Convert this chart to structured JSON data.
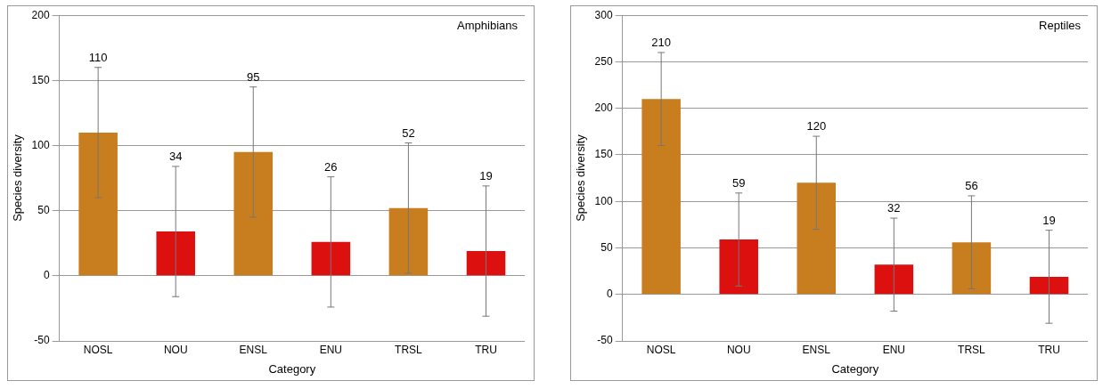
{
  "chart_data": [
    {
      "type": "bar",
      "title": "Amphibians",
      "xlabel": "Category",
      "ylabel": "Species diversity",
      "categories": [
        "NOSL",
        "NOU",
        "ENSL",
        "ENU",
        "TRSL",
        "TRU"
      ],
      "values": [
        110,
        34,
        95,
        26,
        52,
        19
      ],
      "colors": [
        "#c87d1e",
        "#dd1010",
        "#c87d1e",
        "#dd1010",
        "#c87d1e",
        "#dd1010"
      ],
      "errors": [
        50,
        50,
        50,
        50,
        50,
        50
      ],
      "ylim": [
        -50,
        200
      ],
      "yticks": [
        -50,
        0,
        50,
        100,
        150,
        200
      ],
      "grid": "y",
      "legend": false,
      "annotations": [
        {
          "text": "110",
          "x": "NOSL",
          "y": 160
        },
        {
          "text": "34",
          "x": "NOU",
          "y": 84
        },
        {
          "text": "95",
          "x": "ENSL",
          "y": 145
        },
        {
          "text": "26",
          "x": "ENU",
          "y": 76
        },
        {
          "text": "52",
          "x": "TRSL",
          "y": 102
        },
        {
          "text": "19",
          "x": "TRU",
          "y": 69
        }
      ]
    },
    {
      "type": "bar",
      "title": "Reptiles",
      "xlabel": "Category",
      "ylabel": "Species diversity",
      "categories": [
        "NOSL",
        "NOU",
        "ENSL",
        "ENU",
        "TRSL",
        "TRU"
      ],
      "values": [
        210,
        59,
        120,
        32,
        56,
        19
      ],
      "colors": [
        "#c87d1e",
        "#dd1010",
        "#c87d1e",
        "#dd1010",
        "#c87d1e",
        "#dd1010"
      ],
      "errors": [
        50,
        50,
        50,
        50,
        50,
        50
      ],
      "ylim": [
        -50,
        300
      ],
      "yticks": [
        -50,
        0,
        50,
        100,
        150,
        200,
        250,
        300
      ],
      "grid": "y",
      "legend": false,
      "annotations": [
        {
          "text": "210",
          "x": "NOSL",
          "y": 260
        },
        {
          "text": "59",
          "x": "NOU",
          "y": 109
        },
        {
          "text": "120",
          "x": "ENSL",
          "y": 170
        },
        {
          "text": "32",
          "x": "ENU",
          "y": 82
        },
        {
          "text": "56",
          "x": "TRSL",
          "y": 106
        },
        {
          "text": "19",
          "x": "TRU",
          "y": 69
        }
      ]
    }
  ]
}
